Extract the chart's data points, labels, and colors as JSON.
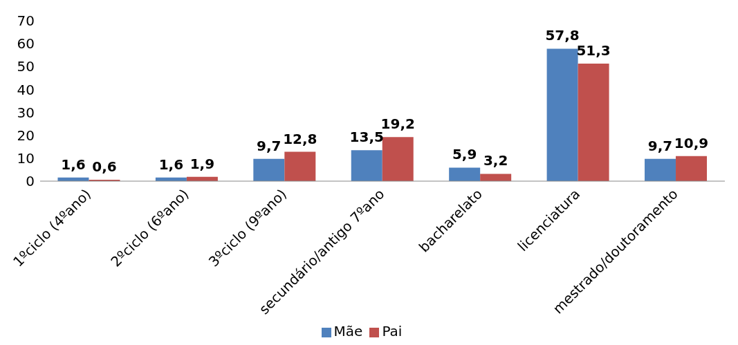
{
  "chart_data": {
    "type": "bar",
    "categories": [
      "1ºciclo (4ºano)",
      "2ºciclo (6ºano)",
      "3ºciclo (9ºano)",
      "secundário/antigo 7ºano",
      "bacharelato",
      "licenciatura",
      "mestrado/doutoramento"
    ],
    "series": [
      {
        "name": "Mãe",
        "color": "#4f81bd",
        "values": [
          1.6,
          1.6,
          9.7,
          13.5,
          5.9,
          57.8,
          9.7
        ],
        "value_labels": [
          "1,6",
          "1,6",
          "9,7",
          "13,5",
          "5,9",
          "57,8",
          "9,7"
        ]
      },
      {
        "name": "Pai",
        "color": "#c0504d",
        "values": [
          0.6,
          1.9,
          12.8,
          19.2,
          3.2,
          51.3,
          10.9
        ],
        "value_labels": [
          "0,6",
          "1,9",
          "12,8",
          "19,2",
          "3,2",
          "51,3",
          "10,9"
        ]
      }
    ],
    "ylim": [
      0,
      70
    ],
    "yticks": [
      0,
      10,
      20,
      30,
      40,
      50,
      60,
      70
    ],
    "grid": false,
    "legend": "bottom"
  }
}
